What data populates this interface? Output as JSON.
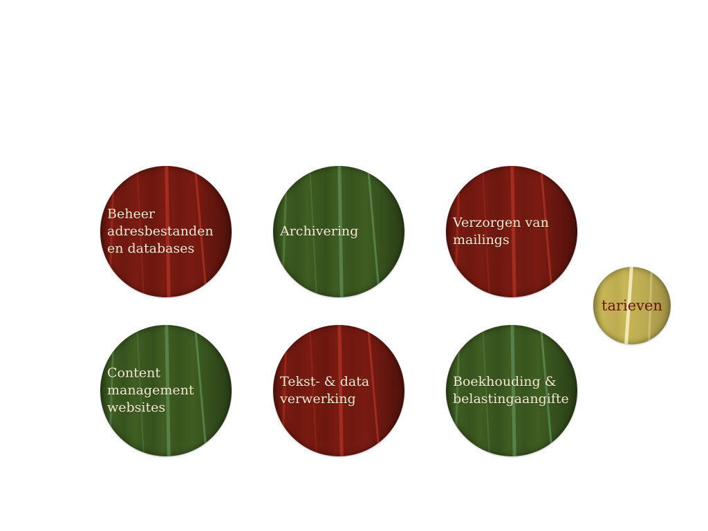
{
  "services": [
    {
      "label": "Beheer\nadresbestanden\nen databases",
      "color": "#7a1b12"
    },
    {
      "label": "Archivering",
      "color": "#3f5e22"
    },
    {
      "label": "Verzorgen van\nmailings",
      "color": "#7a1b12"
    },
    {
      "label": "Content\nmanagement\nwebsites",
      "color": "#3f5e22"
    },
    {
      "label": "Tekst- & data\nverwerking",
      "color": "#7a1b12"
    },
    {
      "label": "Boekhouding  &\nbelastingaangifte",
      "color": "#3f5e22"
    }
  ],
  "tarieven": {
    "label": "tarieven",
    "color": "#c8b757",
    "text_color": "#6e1208"
  }
}
